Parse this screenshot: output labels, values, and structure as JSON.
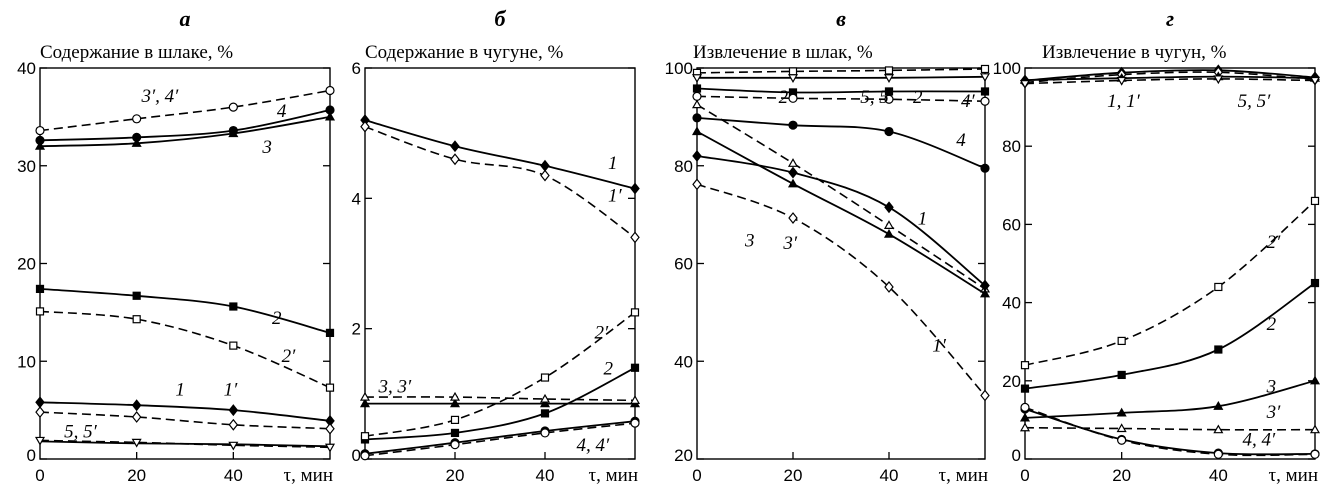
{
  "chart_data": [
    {
      "type": "line",
      "panel_letter": "а",
      "title": "Содержание в шлаке, %",
      "xlabel": "τ, мин",
      "ylim": [
        0,
        40
      ],
      "yticks": [
        0,
        10,
        20,
        30,
        40
      ],
      "xlim": [
        0,
        60
      ],
      "xticks": [
        20,
        40
      ],
      "x_origin_label": "0",
      "grid": false,
      "series": [
        {
          "id": "1",
          "style": "solid",
          "marker": "diamond-filled",
          "x": [
            0,
            20,
            40,
            60
          ],
          "y": [
            5.8,
            5.5,
            5.0,
            3.9
          ]
        },
        {
          "id": "1'",
          "style": "dashed",
          "marker": "diamond-open",
          "x": [
            0,
            20,
            40,
            60
          ],
          "y": [
            4.8,
            4.3,
            3.5,
            3.1
          ]
        },
        {
          "id": "2",
          "style": "solid",
          "marker": "square-filled",
          "x": [
            0,
            20,
            40,
            60
          ],
          "y": [
            17.4,
            16.7,
            15.6,
            12.9
          ]
        },
        {
          "id": "2'",
          "style": "dashed",
          "marker": "square-open",
          "x": [
            0,
            20,
            40,
            60
          ],
          "y": [
            15.1,
            14.3,
            11.6,
            7.3
          ]
        },
        {
          "id": "3",
          "style": "solid",
          "marker": "triangle-filled",
          "x": [
            0,
            20,
            40,
            60
          ],
          "y": [
            32.0,
            32.3,
            33.3,
            35.0
          ]
        },
        {
          "id": "4",
          "style": "solid",
          "marker": "circle-filled",
          "x": [
            0,
            20,
            40,
            60
          ],
          "y": [
            32.6,
            32.9,
            33.6,
            35.7
          ]
        },
        {
          "id": "3', 4'",
          "style": "dashed",
          "marker": "circle-open",
          "x": [
            0,
            20,
            40,
            60
          ],
          "y": [
            33.6,
            34.8,
            36.0,
            37.7
          ]
        },
        {
          "id": "5",
          "style": "solid",
          "marker": "none",
          "x": [
            0,
            20,
            40,
            60
          ],
          "y": [
            1.8,
            1.6,
            1.5,
            1.3
          ]
        },
        {
          "id": "5'",
          "style": "dashed",
          "marker": "triangle-down-open",
          "x": [
            0,
            20,
            40,
            60
          ],
          "y": [
            1.9,
            1.7,
            1.4,
            1.2
          ]
        }
      ],
      "labels": [
        {
          "text": "3′, 4′",
          "x": 21,
          "y": 36.5
        },
        {
          "text": "4",
          "x": 49,
          "y": 35.0
        },
        {
          "text": "3",
          "x": 46,
          "y": 31.3
        },
        {
          "text": "2",
          "x": 48,
          "y": 13.8
        },
        {
          "text": "2′",
          "x": 50,
          "y": 9.9
        },
        {
          "text": "1",
          "x": 28,
          "y": 6.5
        },
        {
          "text": "1′",
          "x": 38,
          "y": 6.5
        },
        {
          "text": "5, 5′",
          "x": 5,
          "y": 2.2
        }
      ]
    },
    {
      "type": "line",
      "panel_letter": "б",
      "title": "Содержание в чугуне, %",
      "xlabel": "τ, мин",
      "ylim": [
        0,
        6
      ],
      "yticks": [
        0,
        2,
        4,
        6
      ],
      "xlim": [
        0,
        60
      ],
      "xticks": [
        20,
        40
      ],
      "grid": false,
      "series": [
        {
          "id": "1",
          "style": "solid",
          "marker": "diamond-filled",
          "x": [
            0,
            20,
            40,
            60
          ],
          "y": [
            5.2,
            4.8,
            4.5,
            4.15
          ]
        },
        {
          "id": "1'",
          "style": "dashed",
          "marker": "diamond-open",
          "x": [
            0,
            20,
            40,
            60
          ],
          "y": [
            5.1,
            4.6,
            4.35,
            3.4
          ]
        },
        {
          "id": "2",
          "style": "solid",
          "marker": "square-filled",
          "x": [
            0,
            20,
            40,
            60
          ],
          "y": [
            0.3,
            0.4,
            0.7,
            1.4
          ]
        },
        {
          "id": "2'",
          "style": "dashed",
          "marker": "square-open",
          "x": [
            0,
            20,
            40,
            60
          ],
          "y": [
            0.35,
            0.6,
            1.25,
            2.25
          ]
        },
        {
          "id": "3",
          "style": "solid",
          "marker": "triangle-filled",
          "x": [
            0,
            20,
            40,
            60
          ],
          "y": [
            0.85,
            0.85,
            0.85,
            0.85
          ]
        },
        {
          "id": "3'",
          "style": "dashed",
          "marker": "triangle-open",
          "x": [
            0,
            20,
            40,
            60
          ],
          "y": [
            0.95,
            0.95,
            0.92,
            0.9
          ]
        },
        {
          "id": "4",
          "style": "solid",
          "marker": "circle-filled",
          "x": [
            0,
            20,
            40,
            60
          ],
          "y": [
            0.08,
            0.25,
            0.43,
            0.58
          ]
        },
        {
          "id": "4'",
          "style": "dashed",
          "marker": "circle-open",
          "x": [
            0,
            20,
            40,
            60
          ],
          "y": [
            0.05,
            0.22,
            0.4,
            0.55
          ]
        }
      ],
      "labels": [
        {
          "text": "1",
          "x": 54,
          "y": 4.45
        },
        {
          "text": "1′",
          "x": 54,
          "y": 3.95
        },
        {
          "text": "3, 3′",
          "x": 3,
          "y": 1.02
        },
        {
          "text": "2′",
          "x": 51,
          "y": 1.85
        },
        {
          "text": "2",
          "x": 53,
          "y": 1.3
        },
        {
          "text": "4, 4′",
          "x": 47,
          "y": 0.12
        }
      ]
    },
    {
      "type": "line",
      "panel_letter": "в",
      "title": "Извлечение в шлак, %",
      "xlabel": "τ, мин",
      "ylim": [
        20,
        100
      ],
      "yticks": [
        20,
        40,
        60,
        80,
        100
      ],
      "xlim": [
        0,
        60
      ],
      "xticks": [
        20,
        40
      ],
      "x_origin_label": "0",
      "grid": false,
      "series": [
        {
          "id": "5'",
          "style": "dashed",
          "marker": "square-open",
          "x": [
            0,
            20,
            40,
            60
          ],
          "y": [
            99.0,
            99.3,
            99.5,
            99.8
          ]
        },
        {
          "id": "5",
          "style": "solid",
          "marker": "triangle-down-open",
          "x": [
            0,
            20,
            40,
            60
          ],
          "y": [
            98.0,
            98.0,
            98.0,
            98.2
          ]
        },
        {
          "id": "2",
          "style": "solid",
          "marker": "square-filled",
          "x": [
            0,
            20,
            40,
            60
          ],
          "y": [
            95.8,
            95.0,
            95.2,
            95.2
          ]
        },
        {
          "id": "2'",
          "style": "dashed",
          "marker": "circle-open",
          "x": [
            0,
            20,
            40,
            60
          ],
          "y": [
            94.2,
            93.8,
            93.6,
            93.2
          ]
        },
        {
          "id": "4",
          "style": "solid",
          "marker": "circle-filled",
          "x": [
            0,
            20,
            40,
            60
          ],
          "y": [
            89.8,
            88.3,
            87.0,
            79.5
          ]
        },
        {
          "id": "3'",
          "style": "dashed",
          "marker": "triangle-open",
          "x": [
            0,
            20,
            40,
            60
          ],
          "y": [
            92.5,
            80.5,
            67.8,
            54.8
          ]
        },
        {
          "id": "1",
          "style": "solid",
          "marker": "diamond-filled",
          "x": [
            0,
            20,
            40,
            60
          ],
          "y": [
            82.0,
            78.6,
            71.5,
            55.5
          ]
        },
        {
          "id": "3",
          "style": "solid",
          "marker": "triangle-filled",
          "x": [
            0,
            20,
            40,
            60
          ],
          "y": [
            87.0,
            76.3,
            66.0,
            53.8
          ]
        },
        {
          "id": "1'",
          "style": "dashed",
          "marker": "diamond-open",
          "x": [
            0,
            20,
            40,
            60
          ],
          "y": [
            76.2,
            69.3,
            55.2,
            33.0
          ]
        }
      ],
      "labels": [
        {
          "text": "2′",
          "x": 17,
          "y": 92.8
        },
        {
          "text": "5, 5′",
          "x": 34,
          "y": 92.8
        },
        {
          "text": "2",
          "x": 45,
          "y": 92.8
        },
        {
          "text": "4′",
          "x": 55,
          "y": 92.0
        },
        {
          "text": "4",
          "x": 54,
          "y": 84.0
        },
        {
          "text": "1",
          "x": 46,
          "y": 68.0
        },
        {
          "text": "3",
          "x": 10,
          "y": 63.5
        },
        {
          "text": "3′",
          "x": 18,
          "y": 63.0
        },
        {
          "text": "1′",
          "x": 49,
          "y": 42.0
        }
      ]
    },
    {
      "type": "line",
      "panel_letter": "г",
      "title": "Извлечение в чугун, %",
      "xlabel": "τ, мин",
      "ylim": [
        0,
        100
      ],
      "yticks": [
        0,
        20,
        40,
        60,
        80,
        100
      ],
      "xlim": [
        0,
        60
      ],
      "xticks": [
        20,
        40
      ],
      "x_origin_label": "0",
      "grid": false,
      "series": [
        {
          "id": "1",
          "style": "solid",
          "marker": "diamond-filled",
          "x": [
            0,
            20,
            40,
            60
          ],
          "y": [
            96.8,
            98.8,
            99.4,
            97.6
          ]
        },
        {
          "id": "1'",
          "style": "dashed",
          "marker": "diamond-open",
          "x": [
            0,
            20,
            40,
            60
          ],
          "y": [
            96.3,
            98.3,
            98.9,
            97.1
          ]
        },
        {
          "id": "5",
          "style": "solid",
          "marker": "triangle-filled",
          "x": [
            0,
            20,
            40,
            60
          ],
          "y": [
            96.9,
            97.4,
            97.8,
            97.4
          ]
        },
        {
          "id": "5'",
          "style": "dashed",
          "marker": "triangle-down-open",
          "x": [
            0,
            20,
            40,
            60
          ],
          "y": [
            96.0,
            96.8,
            97.2,
            96.8
          ]
        },
        {
          "id": "2",
          "style": "solid",
          "marker": "square-filled",
          "x": [
            0,
            20,
            40,
            60
          ],
          "y": [
            18.0,
            21.5,
            28.0,
            45.0
          ]
        },
        {
          "id": "2'",
          "style": "dashed",
          "marker": "square-open",
          "x": [
            0,
            20,
            40,
            60
          ],
          "y": [
            24.0,
            30.2,
            44.0,
            66.0
          ]
        },
        {
          "id": "3",
          "style": "solid",
          "marker": "triangle-filled",
          "x": [
            0,
            20,
            40,
            60
          ],
          "y": [
            10.5,
            11.8,
            13.5,
            20.0
          ]
        },
        {
          "id": "3'",
          "style": "dashed",
          "marker": "triangle-open",
          "x": [
            0,
            20,
            40,
            60
          ],
          "y": [
            8.0,
            7.8,
            7.5,
            7.5
          ]
        },
        {
          "id": "4",
          "style": "solid",
          "marker": "circle-filled",
          "x": [
            0,
            20,
            40,
            60
          ],
          "y": [
            12.8,
            5.0,
            1.5,
            1.3
          ]
        },
        {
          "id": "4'",
          "style": "dashed",
          "marker": "circle-open",
          "x": [
            0,
            20,
            40,
            60
          ],
          "y": [
            13.2,
            4.8,
            1.2,
            1.2
          ]
        }
      ],
      "labels": [
        {
          "text": "1, 1′",
          "x": 17,
          "y": 90.0
        },
        {
          "text": "5, 5′",
          "x": 44,
          "y": 90.0
        },
        {
          "text": "2′",
          "x": 50,
          "y": 54.0
        },
        {
          "text": "2",
          "x": 50,
          "y": 33.0
        },
        {
          "text": "3",
          "x": 50,
          "y": 17.0
        },
        {
          "text": "3′",
          "x": 50,
          "y": 10.5
        },
        {
          "text": "4, 4′",
          "x": 45,
          "y": 3.5
        }
      ]
    }
  ]
}
